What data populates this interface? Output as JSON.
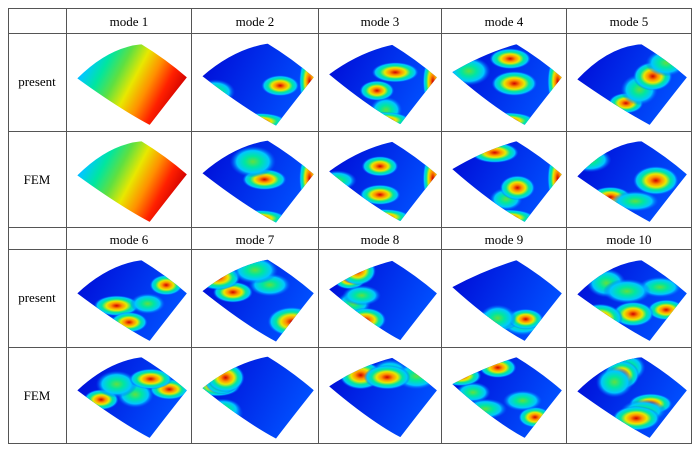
{
  "table": {
    "header_top": [
      "mode 1",
      "mode 2",
      "mode 3",
      "mode 4",
      "mode 5"
    ],
    "header_bottom": [
      "mode 6",
      "mode 7",
      "mode 8",
      "mode 9",
      "mode 10"
    ],
    "row_labels": [
      "present",
      "FEM",
      "present",
      "FEM"
    ]
  },
  "colormap": [
    "#0000d0",
    "#0050ff",
    "#00c8ff",
    "#00e6a0",
    "#60e040",
    "#e8e800",
    "#ff9000",
    "#ff2000",
    "#d00000"
  ],
  "plots": [
    {
      "mode": 1,
      "method": "present",
      "pattern": "gradient",
      "icon": "mode-shape-plot"
    },
    {
      "mode": 2,
      "method": "present",
      "pattern": "edge-bands",
      "icon": "mode-shape-plot"
    },
    {
      "mode": 3,
      "method": "present",
      "pattern": "saddle",
      "icon": "mode-shape-plot"
    },
    {
      "mode": 4,
      "method": "present",
      "pattern": "bands",
      "icon": "mode-shape-plot"
    },
    {
      "mode": 5,
      "method": "present",
      "pattern": "lobes",
      "icon": "mode-shape-plot"
    },
    {
      "mode": 1,
      "method": "FEM",
      "pattern": "gradient",
      "icon": "mode-shape-plot"
    },
    {
      "mode": 2,
      "method": "FEM",
      "pattern": "edge-bands",
      "icon": "mode-shape-plot"
    },
    {
      "mode": 3,
      "method": "FEM",
      "pattern": "saddle",
      "icon": "mode-shape-plot"
    },
    {
      "mode": 4,
      "method": "FEM",
      "pattern": "bands",
      "icon": "mode-shape-plot"
    },
    {
      "mode": 5,
      "method": "FEM",
      "pattern": "lobes",
      "icon": "mode-shape-plot"
    },
    {
      "mode": 6,
      "method": "present",
      "pattern": "lobes",
      "icon": "mode-shape-plot"
    },
    {
      "mode": 7,
      "method": "present",
      "pattern": "lobes",
      "icon": "mode-shape-plot"
    },
    {
      "mode": 8,
      "method": "present",
      "pattern": "lobes",
      "icon": "mode-shape-plot"
    },
    {
      "mode": 9,
      "method": "present",
      "pattern": "lobes",
      "icon": "mode-shape-plot"
    },
    {
      "mode": 10,
      "method": "present",
      "pattern": "lobes",
      "icon": "mode-shape-plot"
    },
    {
      "mode": 6,
      "method": "FEM",
      "pattern": "lobes",
      "icon": "mode-shape-plot"
    },
    {
      "mode": 7,
      "method": "FEM",
      "pattern": "lobes",
      "icon": "mode-shape-plot"
    },
    {
      "mode": 8,
      "method": "FEM",
      "pattern": "lobes",
      "icon": "mode-shape-plot"
    },
    {
      "mode": 9,
      "method": "FEM",
      "pattern": "lobes",
      "icon": "mode-shape-plot"
    },
    {
      "mode": 10,
      "method": "FEM",
      "pattern": "lobes",
      "icon": "mode-shape-plot"
    }
  ]
}
